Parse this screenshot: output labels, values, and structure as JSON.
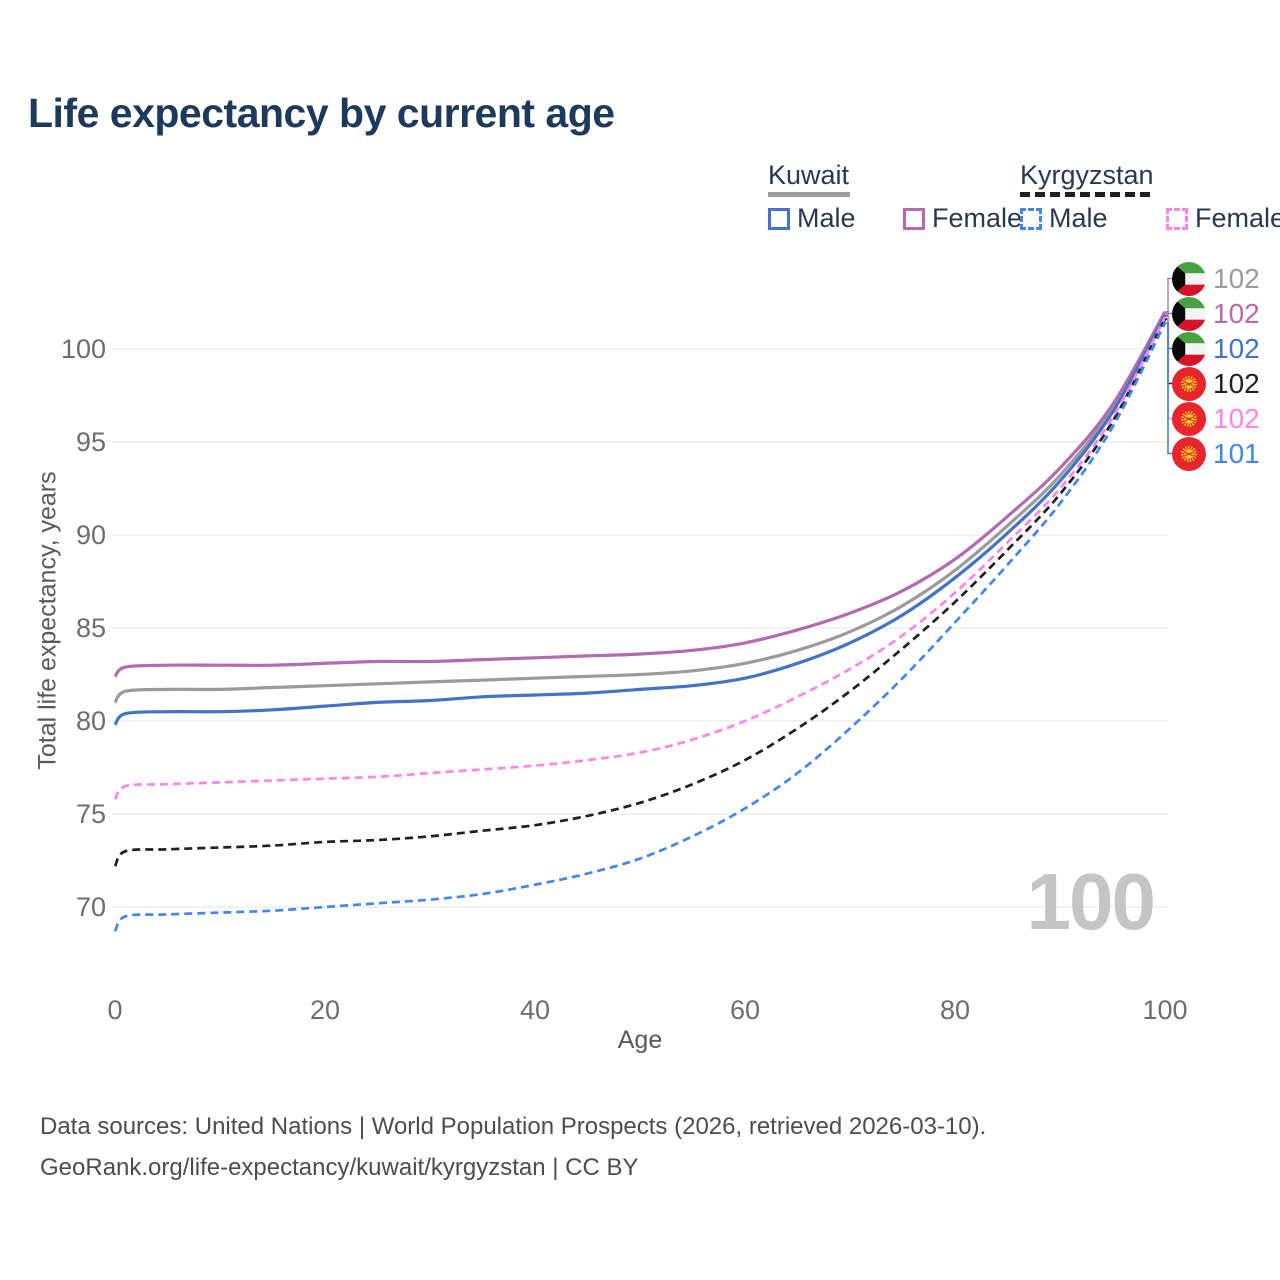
{
  "title": "Life expectancy by current age",
  "legend": {
    "groups": [
      {
        "name": "Kuwait",
        "line_style": "solid",
        "underline_color": "#9e9e9e",
        "items": [
          {
            "label": "Male",
            "color": "#4273c8"
          },
          {
            "label": "Female",
            "color": "#b36ab0"
          }
        ]
      },
      {
        "name": "Kyrgyzstan",
        "line_style": "dashed",
        "underline_color": "#1f1f1f",
        "items": [
          {
            "label": "Male",
            "color": "#4285f4"
          },
          {
            "label": "Female",
            "color": "#ff85e8"
          }
        ]
      }
    ]
  },
  "axes": {
    "x_title": "Age",
    "y_title": "Total life expectancy, years"
  },
  "watermark": "100",
  "footer": {
    "line1": "Data sources: United Nations | World Population Prospects (2026, retrieved 2026-03-10).",
    "line2": "GeoRank.org/life-expectancy/kuwait/kyrgyzstan | CC BY"
  },
  "chart_data": {
    "type": "line",
    "title": "Life expectancy by current age",
    "xlabel": "Age",
    "ylabel": "Total life expectancy, years",
    "xlim": [
      0,
      100
    ],
    "ylim": [
      70,
      100
    ],
    "x_ticks": [
      0,
      20,
      40,
      60,
      80,
      100
    ],
    "y_ticks": [
      70,
      75,
      80,
      85,
      90,
      95,
      100
    ],
    "grid": "horizontal",
    "x": [
      0,
      1,
      5,
      10,
      15,
      20,
      25,
      30,
      35,
      40,
      45,
      50,
      55,
      60,
      65,
      70,
      75,
      80,
      85,
      90,
      95,
      100
    ],
    "series": [
      {
        "name": "Kuwait — Both sexes",
        "country": "Kuwait",
        "flag": "kuwait",
        "color": "#9b9b9b",
        "dash": "solid",
        "end_label": "102",
        "values": [
          81.0,
          81.6,
          81.7,
          81.7,
          81.8,
          81.9,
          82.0,
          82.1,
          82.2,
          82.3,
          82.4,
          82.5,
          82.7,
          83.1,
          83.8,
          84.8,
          86.2,
          88.1,
          90.5,
          93.2,
          96.8,
          101.9
        ]
      },
      {
        "name": "Kuwait — Female",
        "country": "Kuwait",
        "flag": "kuwait",
        "color": "#b36ab0",
        "dash": "solid",
        "end_label": "102",
        "values": [
          82.4,
          82.9,
          83.0,
          83.0,
          83.0,
          83.1,
          83.2,
          83.2,
          83.3,
          83.4,
          83.5,
          83.6,
          83.8,
          84.2,
          84.9,
          85.8,
          87.0,
          88.7,
          91.0,
          93.6,
          97.0,
          102.0
        ]
      },
      {
        "name": "Kuwait — Male",
        "country": "Kuwait",
        "flag": "kuwait",
        "color": "#4273c8",
        "dash": "solid",
        "end_label": "102",
        "values": [
          79.8,
          80.4,
          80.5,
          80.5,
          80.6,
          80.8,
          81.0,
          81.1,
          81.3,
          81.4,
          81.5,
          81.7,
          81.9,
          82.3,
          83.1,
          84.2,
          85.7,
          87.7,
          90.1,
          92.9,
          96.6,
          101.8
        ]
      },
      {
        "name": "Kyrgyzstan — Both sexes",
        "country": "Kyrgyzstan",
        "flag": "kyrgyzstan",
        "color": "#1f1f1f",
        "dash": "dashed",
        "end_label": "102",
        "values": [
          72.2,
          73.0,
          73.1,
          73.2,
          73.3,
          73.5,
          73.6,
          73.8,
          74.1,
          74.4,
          74.9,
          75.6,
          76.6,
          77.9,
          79.6,
          81.6,
          83.9,
          86.4,
          89.2,
          92.2,
          96.1,
          101.6
        ]
      },
      {
        "name": "Kyrgyzstan — Female",
        "country": "Kyrgyzstan",
        "flag": "kyrgyzstan",
        "color": "#ff85e8",
        "dash": "dashed",
        "end_label": "102",
        "values": [
          75.8,
          76.5,
          76.6,
          76.7,
          76.8,
          76.9,
          77.0,
          77.2,
          77.4,
          77.6,
          77.9,
          78.3,
          79.0,
          80.0,
          81.3,
          82.8,
          84.6,
          86.9,
          89.6,
          92.5,
          96.3,
          101.7
        ]
      },
      {
        "name": "Kyrgyzstan — Male",
        "country": "Kyrgyzstan",
        "flag": "kyrgyzstan",
        "color": "#4285f4",
        "dash": "dashed",
        "end_label": "101",
        "values": [
          68.7,
          69.5,
          69.6,
          69.7,
          69.8,
          70.0,
          70.2,
          70.4,
          70.7,
          71.2,
          71.8,
          72.6,
          73.8,
          75.3,
          77.2,
          79.6,
          82.3,
          85.3,
          88.4,
          91.7,
          95.8,
          101.4
        ]
      }
    ]
  }
}
